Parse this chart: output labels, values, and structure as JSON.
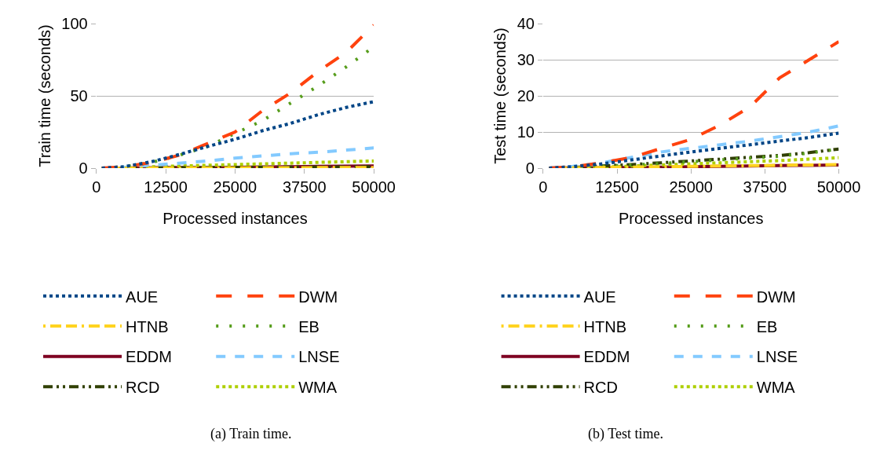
{
  "chart_data": [
    {
      "type": "line",
      "xlabel": "Processed instances",
      "ylabel": "Train time (seconds)",
      "x": [
        1000,
        5000,
        10000,
        15000,
        20000,
        25000,
        30000,
        35000,
        40000,
        45000,
        50000
      ],
      "xlim": [
        0,
        50000
      ],
      "xticks": [
        0,
        12500,
        25000,
        37500,
        50000
      ],
      "ylim": [
        0,
        100
      ],
      "yticks": [
        0,
        50,
        100
      ],
      "grid": "y",
      "legend": "bottom",
      "annotations": [
        "(a) Train time."
      ],
      "series": [
        {
          "name": "AUE",
          "color": "#004586",
          "line_style": "dotted",
          "values": [
            0,
            1,
            4.5,
            9.5,
            15,
            20,
            26,
            31,
            37,
            42,
            46
          ]
        },
        {
          "name": "DWM",
          "color": "#ff420e",
          "line_style": "longdash",
          "values": [
            0,
            1,
            4,
            9,
            17,
            25,
            40,
            52,
            67,
            80,
            99
          ]
        },
        {
          "name": "HTNB",
          "color": "#ffd320",
          "line_style": "dashdot",
          "values": [
            0,
            0,
            0.1,
            0.1,
            0.2,
            0.2,
            0.3,
            0.3,
            0.4,
            0.4,
            0.5
          ]
        },
        {
          "name": "EB",
          "color": "#579d1c",
          "line_style": "sparsedot",
          "values": [
            0,
            1,
            4,
            9,
            15,
            24,
            33,
            45,
            57,
            70,
            84
          ]
        },
        {
          "name": "EDDM",
          "color": "#7e0021",
          "line_style": "solid",
          "values": [
            0,
            0.1,
            0.3,
            0.4,
            0.5,
            0.6,
            0.8,
            1,
            1.2,
            1.4,
            1.6
          ]
        },
        {
          "name": "LNSE",
          "color": "#83caff",
          "line_style": "dashed",
          "values": [
            0,
            0.5,
            2,
            3.5,
            5,
            7,
            8.5,
            10,
            11,
            12.5,
            14
          ]
        },
        {
          "name": "RCD",
          "color": "#314004",
          "line_style": "dashdotdot",
          "values": [
            0,
            0.1,
            0.2,
            0.3,
            0.4,
            0.5,
            0.6,
            0.7,
            0.8,
            0.9,
            1
          ]
        },
        {
          "name": "WMA",
          "color": "#aecf00",
          "line_style": "dotted",
          "values": [
            0,
            0.3,
            1,
            1.5,
            2,
            2.5,
            3,
            3.5,
            4,
            4.5,
            5
          ]
        }
      ]
    },
    {
      "type": "line",
      "xlabel": "Processed instances",
      "ylabel": "Test time (seconds)",
      "x": [
        1000,
        5000,
        10000,
        15000,
        20000,
        25000,
        30000,
        35000,
        40000,
        45000,
        50000
      ],
      "xlim": [
        0,
        50000
      ],
      "xticks": [
        0,
        12500,
        25000,
        37500,
        50000
      ],
      "ylim": [
        0,
        40
      ],
      "yticks": [
        0,
        10,
        20,
        30,
        40
      ],
      "grid": "y",
      "legend": "bottom",
      "annotations": [
        "(b) Test time."
      ],
      "series": [
        {
          "name": "AUE",
          "color": "#004586",
          "line_style": "dotted",
          "values": [
            0,
            0.4,
            1.2,
            2.3,
            3.4,
            4.5,
            5.5,
            6.5,
            7.5,
            8.5,
            9.7
          ]
        },
        {
          "name": "DWM",
          "color": "#ff420e",
          "line_style": "longdash",
          "values": [
            0,
            0.4,
            1.5,
            3,
            5.5,
            8,
            12,
            17,
            25,
            30,
            35
          ]
        },
        {
          "name": "HTNB",
          "color": "#ffd320",
          "line_style": "dashdot",
          "values": [
            0,
            0.1,
            0.2,
            0.3,
            0.4,
            0.5,
            0.6,
            0.7,
            0.8,
            0.9,
            1
          ]
        },
        {
          "name": "EB",
          "color": "#579d1c",
          "line_style": "sparsedot",
          "values": [
            0,
            0.2,
            0.5,
            0.9,
            1.3,
            1.8,
            2.3,
            2.8,
            3.3,
            4.2,
            5.3
          ]
        },
        {
          "name": "EDDM",
          "color": "#7e0021",
          "line_style": "solid",
          "values": [
            0,
            0.1,
            0.1,
            0.2,
            0.3,
            0.4,
            0.5,
            0.6,
            0.7,
            0.8,
            0.9
          ]
        },
        {
          "name": "LNSE",
          "color": "#83caff",
          "line_style": "dashed",
          "values": [
            0,
            0.5,
            1.5,
            3,
            4.5,
            5.5,
            6.5,
            7.5,
            8.7,
            10,
            11.7
          ]
        },
        {
          "name": "RCD",
          "color": "#314004",
          "line_style": "dashdotdot",
          "values": [
            0,
            0.2,
            0.6,
            1,
            1.5,
            2,
            2.5,
            3,
            3.5,
            4.3,
            5.3
          ]
        },
        {
          "name": "WMA",
          "color": "#aecf00",
          "line_style": "dotted",
          "values": [
            0,
            0.1,
            0.3,
            0.6,
            0.9,
            1.2,
            1.5,
            1.8,
            2.1,
            2.5,
            2.9
          ]
        }
      ]
    }
  ]
}
